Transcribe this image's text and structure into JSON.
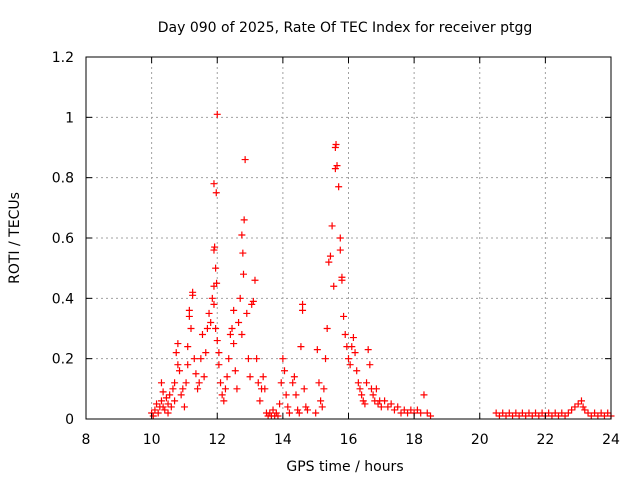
{
  "chart_data": {
    "type": "scatter",
    "title": "Day 090 of 2025, Rate Of TEC Index for receiver ptgg",
    "xlabel": "GPS time / hours",
    "ylabel": "ROTI / TECUs",
    "xlim": [
      8,
      24
    ],
    "ylim": [
      0,
      1.2
    ],
    "xticks": [
      8,
      10,
      12,
      14,
      16,
      18,
      20,
      22,
      24
    ],
    "yticks": [
      0,
      0.2,
      0.4,
      0.6,
      0.8,
      1,
      1.2
    ],
    "ytick_labels": [
      "0",
      "0.2",
      "0.4",
      "0.6",
      "0.8",
      "1",
      "1.2"
    ],
    "grid": true,
    "marker": "+",
    "color": "#ff0000",
    "points": [
      [
        10.0,
        0.02
      ],
      [
        10.05,
        0.01
      ],
      [
        10.1,
        0.03
      ],
      [
        10.15,
        0.05
      ],
      [
        10.2,
        0.02
      ],
      [
        10.25,
        0.04
      ],
      [
        10.3,
        0.06
      ],
      [
        10.3,
        0.12
      ],
      [
        10.35,
        0.09
      ],
      [
        10.35,
        0.04
      ],
      [
        10.4,
        0.03
      ],
      [
        10.45,
        0.07
      ],
      [
        10.5,
        0.05
      ],
      [
        10.5,
        0.02
      ],
      [
        10.55,
        0.08
      ],
      [
        10.6,
        0.04
      ],
      [
        10.65,
        0.1
      ],
      [
        10.7,
        0.12
      ],
      [
        10.7,
        0.06
      ],
      [
        10.75,
        0.22
      ],
      [
        10.8,
        0.18
      ],
      [
        10.8,
        0.25
      ],
      [
        10.85,
        0.16
      ],
      [
        10.9,
        0.08
      ],
      [
        10.95,
        0.1
      ],
      [
        11.0,
        0.04
      ],
      [
        11.05,
        0.12
      ],
      [
        11.1,
        0.18
      ],
      [
        11.1,
        0.24
      ],
      [
        11.15,
        0.36
      ],
      [
        11.15,
        0.34
      ],
      [
        11.2,
        0.3
      ],
      [
        11.25,
        0.41
      ],
      [
        11.25,
        0.42
      ],
      [
        11.3,
        0.2
      ],
      [
        11.35,
        0.15
      ],
      [
        11.4,
        0.1
      ],
      [
        11.45,
        0.12
      ],
      [
        11.5,
        0.2
      ],
      [
        11.55,
        0.28
      ],
      [
        11.6,
        0.14
      ],
      [
        11.65,
        0.22
      ],
      [
        11.7,
        0.3
      ],
      [
        11.75,
        0.35
      ],
      [
        11.8,
        0.32
      ],
      [
        11.85,
        0.4
      ],
      [
        11.9,
        0.44
      ],
      [
        11.9,
        0.38
      ],
      [
        11.95,
        0.3
      ],
      [
        11.95,
        0.5
      ],
      [
        11.9,
        0.56
      ],
      [
        11.92,
        0.57
      ],
      [
        11.9,
        0.78
      ],
      [
        11.97,
        0.75
      ],
      [
        11.98,
        0.45
      ],
      [
        12.0,
        1.01
      ],
      [
        12.0,
        0.26
      ],
      [
        12.05,
        0.18
      ],
      [
        12.05,
        0.22
      ],
      [
        12.1,
        0.12
      ],
      [
        12.15,
        0.08
      ],
      [
        12.2,
        0.06
      ],
      [
        12.25,
        0.1
      ],
      [
        12.3,
        0.14
      ],
      [
        12.35,
        0.2
      ],
      [
        12.4,
        0.28
      ],
      [
        12.45,
        0.3
      ],
      [
        12.5,
        0.25
      ],
      [
        12.5,
        0.36
      ],
      [
        12.55,
        0.16
      ],
      [
        12.6,
        0.1
      ],
      [
        12.65,
        0.32
      ],
      [
        12.7,
        0.4
      ],
      [
        12.75,
        0.28
      ],
      [
        12.75,
        0.61
      ],
      [
        12.78,
        0.55
      ],
      [
        12.8,
        0.48
      ],
      [
        12.82,
        0.66
      ],
      [
        12.85,
        0.86
      ],
      [
        12.9,
        0.35
      ],
      [
        12.95,
        0.2
      ],
      [
        13.0,
        0.14
      ],
      [
        13.05,
        0.38
      ],
      [
        13.1,
        0.39
      ],
      [
        13.15,
        0.46
      ],
      [
        13.2,
        0.2
      ],
      [
        13.25,
        0.12
      ],
      [
        13.3,
        0.06
      ],
      [
        13.35,
        0.1
      ],
      [
        13.4,
        0.14
      ],
      [
        13.45,
        0.1
      ],
      [
        13.5,
        0.02
      ],
      [
        13.55,
        0.01
      ],
      [
        13.6,
        0.02
      ],
      [
        13.65,
        0.01
      ],
      [
        13.7,
        0.03
      ],
      [
        13.75,
        0.01
      ],
      [
        13.8,
        0.02
      ],
      [
        13.85,
        0.01
      ],
      [
        13.9,
        0.05
      ],
      [
        13.95,
        0.12
      ],
      [
        14.0,
        0.2
      ],
      [
        14.05,
        0.16
      ],
      [
        14.1,
        0.08
      ],
      [
        14.15,
        0.04
      ],
      [
        14.2,
        0.02
      ],
      [
        14.3,
        0.12
      ],
      [
        14.35,
        0.14
      ],
      [
        14.4,
        0.08
      ],
      [
        14.45,
        0.03
      ],
      [
        14.5,
        0.02
      ],
      [
        14.55,
        0.24
      ],
      [
        14.6,
        0.36
      ],
      [
        14.6,
        0.38
      ],
      [
        14.65,
        0.1
      ],
      [
        14.7,
        0.04
      ],
      [
        14.75,
        0.03
      ],
      [
        15.0,
        0.02
      ],
      [
        15.05,
        0.23
      ],
      [
        15.1,
        0.12
      ],
      [
        15.15,
        0.06
      ],
      [
        15.2,
        0.04
      ],
      [
        15.25,
        0.1
      ],
      [
        15.3,
        0.2
      ],
      [
        15.35,
        0.3
      ],
      [
        15.4,
        0.52
      ],
      [
        15.45,
        0.54
      ],
      [
        15.5,
        0.64
      ],
      [
        15.55,
        0.44
      ],
      [
        15.6,
        0.9
      ],
      [
        15.6,
        0.83
      ],
      [
        15.62,
        0.91
      ],
      [
        15.65,
        0.84
      ],
      [
        15.7,
        0.77
      ],
      [
        15.75,
        0.6
      ],
      [
        15.75,
        0.56
      ],
      [
        15.8,
        0.47
      ],
      [
        15.8,
        0.46
      ],
      [
        15.85,
        0.34
      ],
      [
        15.9,
        0.28
      ],
      [
        15.95,
        0.24
      ],
      [
        16.0,
        0.2
      ],
      [
        16.05,
        0.18
      ],
      [
        16.1,
        0.24
      ],
      [
        16.15,
        0.27
      ],
      [
        16.2,
        0.22
      ],
      [
        16.25,
        0.16
      ],
      [
        16.3,
        0.12
      ],
      [
        16.35,
        0.1
      ],
      [
        16.4,
        0.08
      ],
      [
        16.45,
        0.06
      ],
      [
        16.5,
        0.05
      ],
      [
        16.55,
        0.12
      ],
      [
        16.6,
        0.23
      ],
      [
        16.65,
        0.18
      ],
      [
        16.7,
        0.1
      ],
      [
        16.75,
        0.08
      ],
      [
        16.8,
        0.06
      ],
      [
        16.85,
        0.1
      ],
      [
        16.9,
        0.05
      ],
      [
        16.95,
        0.06
      ],
      [
        17.0,
        0.04
      ],
      [
        17.1,
        0.06
      ],
      [
        17.2,
        0.04
      ],
      [
        17.3,
        0.05
      ],
      [
        17.4,
        0.03
      ],
      [
        17.5,
        0.04
      ],
      [
        17.6,
        0.02
      ],
      [
        17.7,
        0.03
      ],
      [
        17.8,
        0.02
      ],
      [
        17.9,
        0.03
      ],
      [
        18.0,
        0.02
      ],
      [
        18.1,
        0.03
      ],
      [
        18.2,
        0.02
      ],
      [
        18.3,
        0.08
      ],
      [
        18.4,
        0.02
      ],
      [
        18.5,
        0.01
      ],
      [
        20.5,
        0.02
      ],
      [
        20.6,
        0.01
      ],
      [
        20.7,
        0.02
      ],
      [
        20.8,
        0.01
      ],
      [
        20.9,
        0.02
      ],
      [
        21.0,
        0.01
      ],
      [
        21.1,
        0.02
      ],
      [
        21.2,
        0.01
      ],
      [
        21.3,
        0.02
      ],
      [
        21.4,
        0.01
      ],
      [
        21.5,
        0.02
      ],
      [
        21.6,
        0.01
      ],
      [
        21.7,
        0.02
      ],
      [
        21.8,
        0.01
      ],
      [
        21.9,
        0.02
      ],
      [
        22.0,
        0.01
      ],
      [
        22.1,
        0.02
      ],
      [
        22.2,
        0.01
      ],
      [
        22.3,
        0.02
      ],
      [
        22.4,
        0.01
      ],
      [
        22.5,
        0.02
      ],
      [
        22.6,
        0.01
      ],
      [
        22.7,
        0.02
      ],
      [
        22.8,
        0.03
      ],
      [
        22.9,
        0.04
      ],
      [
        23.0,
        0.05
      ],
      [
        23.1,
        0.06
      ],
      [
        23.15,
        0.04
      ],
      [
        23.2,
        0.03
      ],
      [
        23.3,
        0.02
      ],
      [
        23.4,
        0.01
      ],
      [
        23.5,
        0.02
      ],
      [
        23.6,
        0.01
      ],
      [
        23.7,
        0.02
      ],
      [
        23.8,
        0.01
      ],
      [
        23.9,
        0.02
      ],
      [
        24.0,
        0.01
      ]
    ]
  }
}
